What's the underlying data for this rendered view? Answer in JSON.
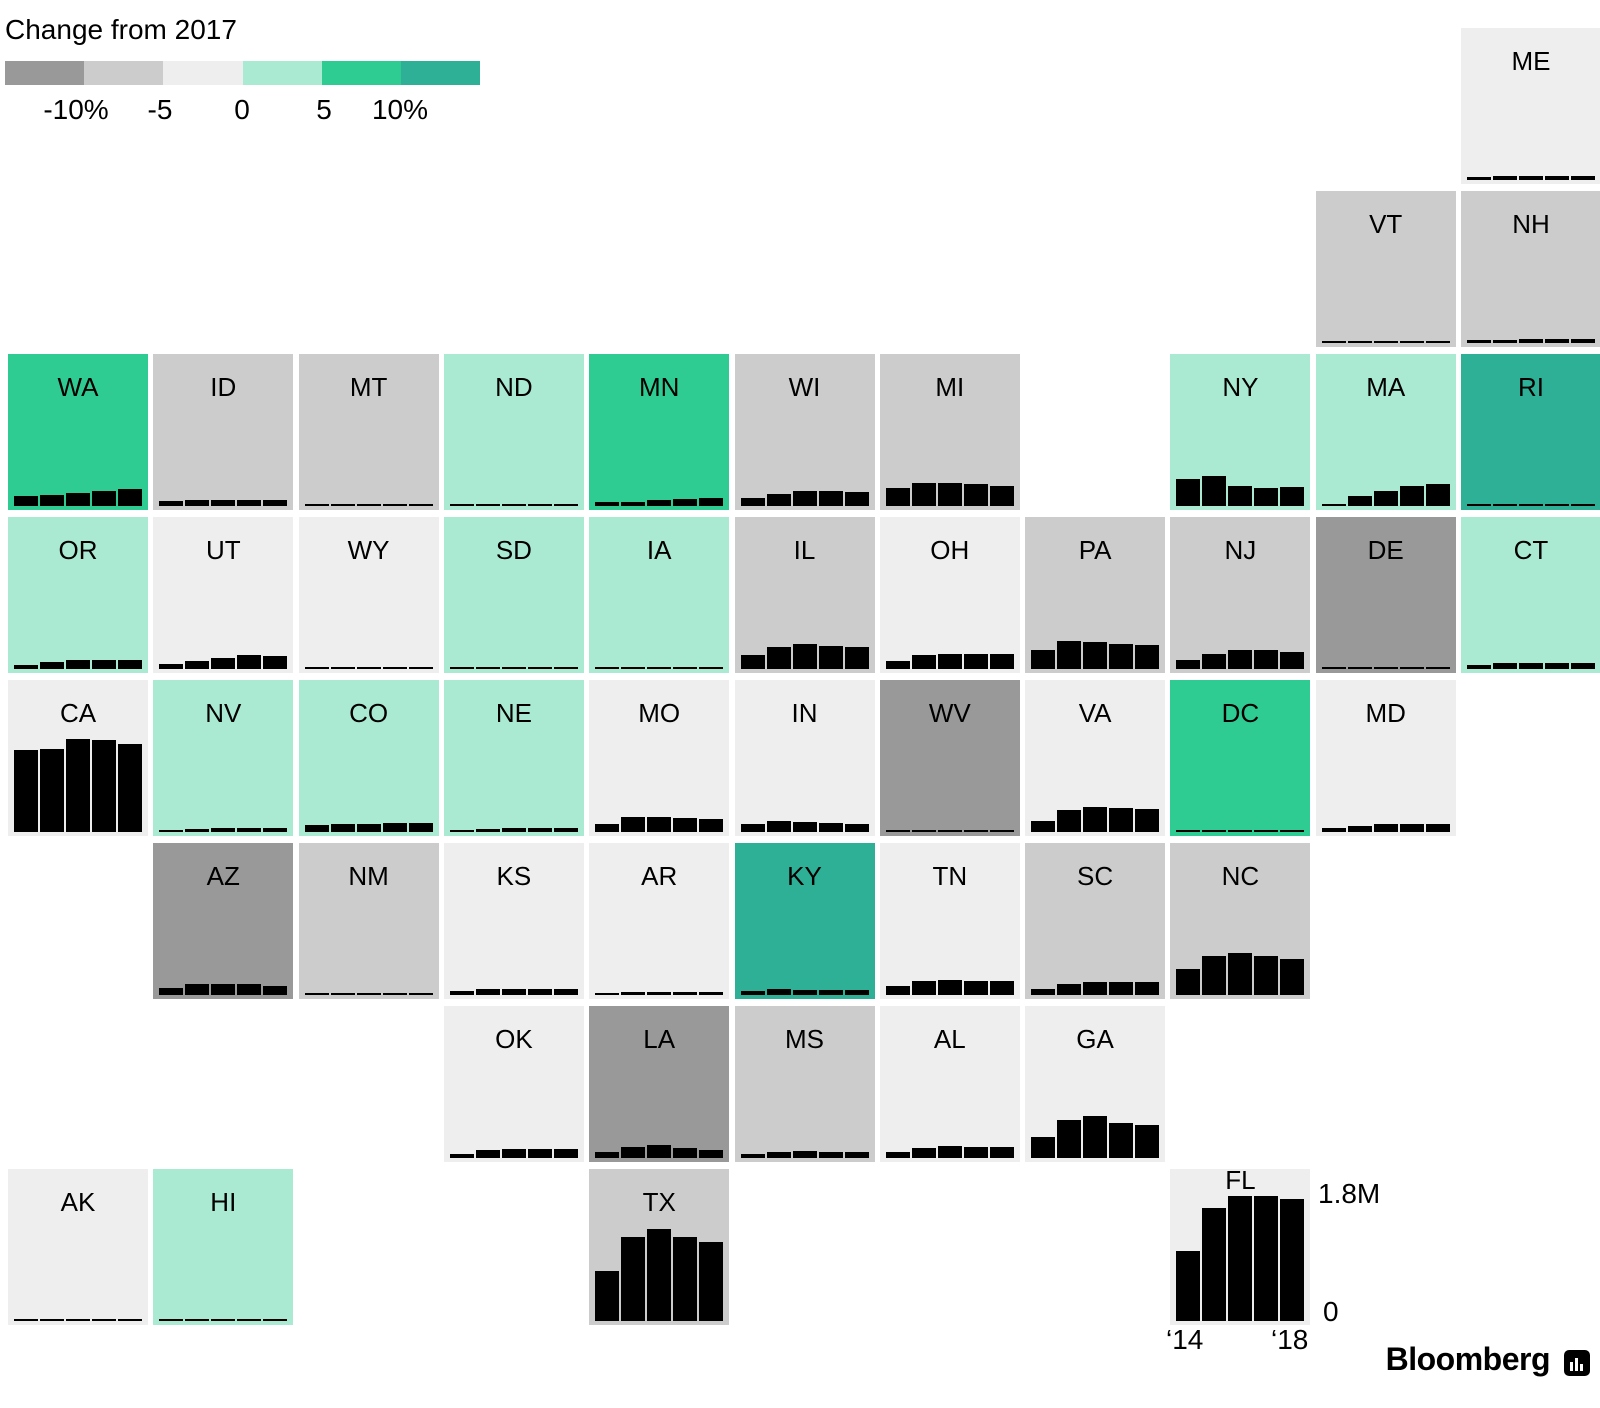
{
  "chart_data": {
    "type": "bar",
    "title": "Change from 2017",
    "legend": {
      "colors": [
        "#999999",
        "#cccccc",
        "#eeeeee",
        "#aaead3",
        "#2ecc93",
        "#2db095"
      ],
      "ticks": [
        "-10%",
        "-5",
        "0",
        "5",
        "10%"
      ]
    },
    "categories": [
      "2014",
      "2015",
      "2016",
      "2017",
      "2018"
    ],
    "ylim": [
      0,
      1800000
    ],
    "axis": {
      "ymax_label": "1.8M",
      "ymin_label": "0",
      "xstart_label": "‘14",
      "xend_label": "‘18"
    },
    "states": [
      {
        "code": "ME",
        "row": 0,
        "col": 10,
        "color": "#eeeeee",
        "values": [
          40000,
          50000,
          60000,
          60000,
          60000
        ]
      },
      {
        "code": "VT",
        "row": 1,
        "col": 9,
        "color": "#cccccc",
        "values": [
          25000,
          25000,
          25000,
          25000,
          25000
        ]
      },
      {
        "code": "NH",
        "row": 1,
        "col": 10,
        "color": "#cccccc",
        "values": [
          40000,
          40000,
          50000,
          50000,
          50000
        ]
      },
      {
        "code": "WA",
        "row": 2,
        "col": 0,
        "color": "#2ecc93",
        "values": [
          140000,
          150000,
          180000,
          210000,
          240000
        ]
      },
      {
        "code": "ID",
        "row": 2,
        "col": 1,
        "color": "#cccccc",
        "values": [
          70000,
          85000,
          90000,
          90000,
          85000
        ]
      },
      {
        "code": "MT",
        "row": 2,
        "col": 2,
        "color": "#cccccc",
        "values": [
          30000,
          35000,
          35000,
          35000,
          30000
        ]
      },
      {
        "code": "ND",
        "row": 2,
        "col": 3,
        "color": "#aaead3",
        "values": [
          12000,
          12000,
          12000,
          12000,
          12000
        ]
      },
      {
        "code": "MN",
        "row": 2,
        "col": 4,
        "color": "#2ecc93",
        "values": [
          50000,
          60000,
          80000,
          100000,
          120000
        ]
      },
      {
        "code": "WI",
        "row": 2,
        "col": 5,
        "color": "#cccccc",
        "values": [
          120000,
          170000,
          210000,
          210000,
          200000
        ]
      },
      {
        "code": "MI",
        "row": 2,
        "col": 6,
        "color": "#cccccc",
        "values": [
          250000,
          330000,
          330000,
          310000,
          280000
        ]
      },
      {
        "code": "NY",
        "row": 2,
        "col": 8,
        "color": "#aaead3",
        "values": [
          390000,
          430000,
          290000,
          260000,
          270000
        ]
      },
      {
        "code": "MA",
        "row": 2,
        "col": 9,
        "color": "#aaead3",
        "values": [
          20000,
          140000,
          220000,
          290000,
          310000
        ]
      },
      {
        "code": "RI",
        "row": 2,
        "col": 10,
        "color": "#2db095",
        "values": [
          20000,
          20000,
          20000,
          20000,
          20000
        ]
      },
      {
        "code": "OR",
        "row": 3,
        "col": 0,
        "color": "#aaead3",
        "values": [
          50000,
          100000,
          130000,
          130000,
          130000
        ]
      },
      {
        "code": "UT",
        "row": 3,
        "col": 1,
        "color": "#eeeeee",
        "values": [
          70000,
          110000,
          160000,
          200000,
          190000
        ]
      },
      {
        "code": "WY",
        "row": 3,
        "col": 2,
        "color": "#eeeeee",
        "values": [
          9000,
          9000,
          9000,
          9000,
          9000
        ]
      },
      {
        "code": "SD",
        "row": 3,
        "col": 3,
        "color": "#aaead3",
        "values": [
          10000,
          10000,
          10000,
          10000,
          10000
        ]
      },
      {
        "code": "IA",
        "row": 3,
        "col": 4,
        "color": "#aaead3",
        "values": [
          20000,
          20000,
          25000,
          25000,
          25000
        ]
      },
      {
        "code": "IL",
        "row": 3,
        "col": 5,
        "color": "#cccccc",
        "values": [
          200000,
          310000,
          350000,
          330000,
          310000
        ]
      },
      {
        "code": "OH",
        "row": 3,
        "col": 6,
        "color": "#eeeeee",
        "values": [
          120000,
          200000,
          210000,
          210000,
          210000
        ]
      },
      {
        "code": "PA",
        "row": 3,
        "col": 7,
        "color": "#cccccc",
        "values": [
          270000,
          400000,
          380000,
          360000,
          340000
        ]
      },
      {
        "code": "NJ",
        "row": 3,
        "col": 8,
        "color": "#cccccc",
        "values": [
          130000,
          210000,
          270000,
          270000,
          240000
        ]
      },
      {
        "code": "DE",
        "row": 3,
        "col": 9,
        "color": "#999999",
        "values": [
          15000,
          15000,
          15000,
          15000,
          15000
        ]
      },
      {
        "code": "CT",
        "row": 3,
        "col": 10,
        "color": "#aaead3",
        "values": [
          60000,
          80000,
          90000,
          90000,
          90000
        ]
      },
      {
        "code": "CA",
        "row": 4,
        "col": 0,
        "color": "#eeeeee",
        "values": [
          1170000,
          1190000,
          1330000,
          1310000,
          1260000
        ]
      },
      {
        "code": "NV",
        "row": 4,
        "col": 1,
        "color": "#aaead3",
        "values": [
          30000,
          40000,
          50000,
          60000,
          60000
        ]
      },
      {
        "code": "CO",
        "row": 4,
        "col": 2,
        "color": "#aaead3",
        "values": [
          100000,
          110000,
          120000,
          130000,
          130000
        ]
      },
      {
        "code": "NE",
        "row": 4,
        "col": 3,
        "color": "#aaead3",
        "values": [
          30000,
          40000,
          50000,
          60000,
          60000
        ]
      },
      {
        "code": "MO",
        "row": 4,
        "col": 4,
        "color": "#eeeeee",
        "values": [
          120000,
          220000,
          220000,
          200000,
          190000
        ]
      },
      {
        "code": "IN",
        "row": 4,
        "col": 5,
        "color": "#eeeeee",
        "values": [
          110000,
          160000,
          140000,
          130000,
          120000
        ]
      },
      {
        "code": "WV",
        "row": 4,
        "col": 6,
        "color": "#999999",
        "values": [
          15000,
          15000,
          15000,
          15000,
          15000
        ]
      },
      {
        "code": "VA",
        "row": 4,
        "col": 7,
        "color": "#eeeeee",
        "values": [
          160000,
          310000,
          350000,
          340000,
          330000
        ]
      },
      {
        "code": "DC",
        "row": 4,
        "col": 8,
        "color": "#2ecc93",
        "values": [
          10000,
          10000,
          10000,
          10000,
          10000
        ]
      },
      {
        "code": "MD",
        "row": 4,
        "col": 9,
        "color": "#eeeeee",
        "values": [
          50000,
          80000,
          110000,
          110000,
          110000
        ]
      },
      {
        "code": "AZ",
        "row": 5,
        "col": 1,
        "color": "#999999",
        "values": [
          100000,
          160000,
          160000,
          150000,
          130000
        ]
      },
      {
        "code": "NM",
        "row": 5,
        "col": 2,
        "color": "#cccccc",
        "values": [
          25000,
          30000,
          35000,
          30000,
          25000
        ]
      },
      {
        "code": "KS",
        "row": 5,
        "col": 3,
        "color": "#eeeeee",
        "values": [
          50000,
          80000,
          90000,
          90000,
          90000
        ]
      },
      {
        "code": "AR",
        "row": 5,
        "col": 4,
        "color": "#eeeeee",
        "values": [
          30000,
          40000,
          40000,
          40000,
          40000
        ]
      },
      {
        "code": "KY",
        "row": 5,
        "col": 5,
        "color": "#2db095",
        "values": [
          60000,
          80000,
          70000,
          70000,
          70000
        ]
      },
      {
        "code": "TN",
        "row": 5,
        "col": 6,
        "color": "#eeeeee",
        "values": [
          130000,
          200000,
          220000,
          200000,
          200000
        ]
      },
      {
        "code": "SC",
        "row": 5,
        "col": 7,
        "color": "#cccccc",
        "values": [
          90000,
          160000,
          190000,
          180000,
          180000
        ]
      },
      {
        "code": "NC",
        "row": 5,
        "col": 8,
        "color": "#cccccc",
        "values": [
          370000,
          560000,
          600000,
          560000,
          520000
        ]
      },
      {
        "code": "OK",
        "row": 6,
        "col": 3,
        "color": "#eeeeee",
        "values": [
          50000,
          110000,
          130000,
          130000,
          130000
        ]
      },
      {
        "code": "LA",
        "row": 6,
        "col": 4,
        "color": "#999999",
        "values": [
          90000,
          160000,
          190000,
          140000,
          110000
        ]
      },
      {
        "code": "MS",
        "row": 6,
        "col": 5,
        "color": "#cccccc",
        "values": [
          60000,
          90000,
          100000,
          90000,
          80000
        ]
      },
      {
        "code": "AL",
        "row": 6,
        "col": 6,
        "color": "#eeeeee",
        "values": [
          80000,
          140000,
          170000,
          160000,
          150000
        ]
      },
      {
        "code": "GA",
        "row": 6,
        "col": 7,
        "color": "#eeeeee",
        "values": [
          300000,
          540000,
          600000,
          500000,
          470000
        ]
      },
      {
        "code": "AK",
        "row": 7,
        "col": 0,
        "color": "#eeeeee",
        "values": [
          5000,
          5000,
          5000,
          5000,
          5000
        ]
      },
      {
        "code": "HI",
        "row": 7,
        "col": 1,
        "color": "#aaead3",
        "values": [
          6000,
          6000,
          6000,
          6000,
          6000
        ]
      },
      {
        "code": "TX",
        "row": 7,
        "col": 4,
        "color": "#cccccc",
        "values": [
          720000,
          1200000,
          1320000,
          1200000,
          1130000
        ]
      },
      {
        "code": "FL",
        "row": 7,
        "col": 8,
        "color": "#eeeeee",
        "values": [
          1000000,
          1610000,
          1780000,
          1780000,
          1740000
        ]
      }
    ]
  },
  "brand": {
    "name": "Bloomberg"
  }
}
